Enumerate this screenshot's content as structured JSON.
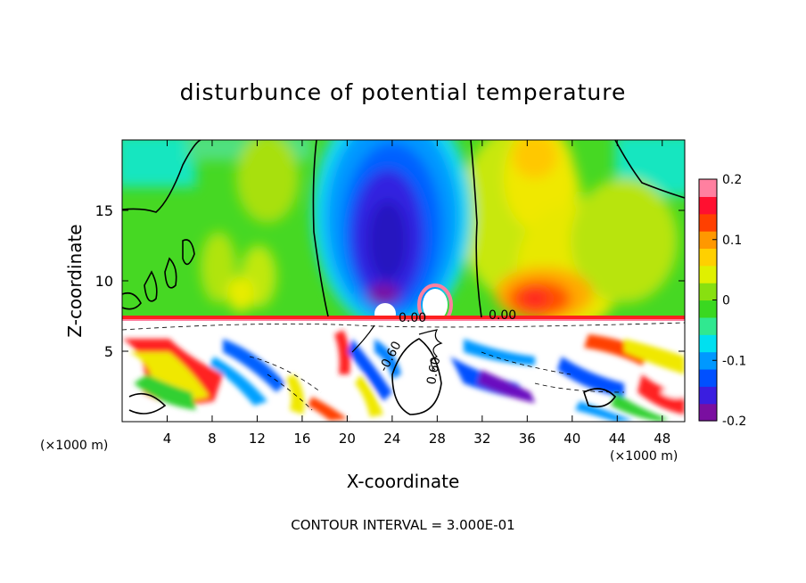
{
  "chart_data": {
    "type": "heatmap",
    "title": "disturbunce of potential temperature",
    "xlabel": "X-coordinate",
    "ylabel": "Z-coordinate",
    "x_unit": "(×1000 m)",
    "z_unit": "(×1000 m)",
    "footer": "CONTOUR INTERVAL = 3.000E-01",
    "xlim": [
      0,
      50
    ],
    "ylim": [
      0,
      20
    ],
    "x_ticks": [
      "4",
      "8",
      "12",
      "16",
      "20",
      "24",
      "28",
      "32",
      "36",
      "40",
      "44",
      "48"
    ],
    "y_ticks": [
      "5",
      "10",
      "15"
    ],
    "colorbar": {
      "range": [
        -0.2,
        0.2
      ],
      "tick_labels": [
        "0.2",
        "0.1",
        "0",
        "-0.1",
        "-0.2"
      ],
      "tick_values": [
        0.2,
        0.1,
        0,
        -0.1,
        -0.2
      ],
      "colors": [
        "#7a0fa0",
        "#3a1ee0",
        "#0050ff",
        "#0098ff",
        "#00e0f0",
        "#30e890",
        "#3ad820",
        "#88e010",
        "#e0f000",
        "#ffd000",
        "#ff9800",
        "#ff4000",
        "#ff1030",
        "#ff80a0"
      ]
    },
    "contour_labels": [
      {
        "text": "0.00",
        "x": 25,
        "z": 7.4
      },
      {
        "text": "0.00",
        "x": 34,
        "z": 7.5
      },
      {
        "text": "-0.60",
        "x": 22,
        "z": 5
      },
      {
        "text": "0.60",
        "x": 27.5,
        "z": 3.3
      }
    ],
    "features": {
      "upper_cold_core": {
        "x_center": 25.5,
        "z_center": 13.5,
        "value": -0.2
      },
      "upper_warm_core": {
        "x_center": 38.5,
        "z_center": 9.5,
        "value": 0.15
      },
      "inversion_height": 7.3,
      "lower_layer": "saturated mixed layer with strong perturbations beyond colorbar range"
    }
  }
}
